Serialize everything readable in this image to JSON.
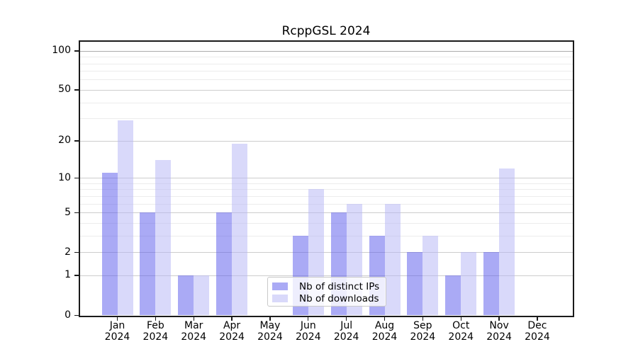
{
  "title": "RcppGSL 2024",
  "legend": {
    "items": [
      {
        "label": "Nb of distinct IPs",
        "color": "rgba(85,85,235,0.5)",
        "color_hex_on_white": "#aaaaf5"
      },
      {
        "label": "Nb of downloads",
        "color": "rgba(179,179,245,0.5)",
        "color_hex_on_white": "#d9d9fa"
      }
    ]
  },
  "chart_data": {
    "type": "bar",
    "title": "RcppGSL 2024",
    "categories": [
      "Jan 2024",
      "Feb 2024",
      "Mar 2024",
      "Apr 2024",
      "May 2024",
      "Jun 2024",
      "Jul 2024",
      "Aug 2024",
      "Sep 2024",
      "Oct 2024",
      "Nov 2024",
      "Dec 2024"
    ],
    "series": [
      {
        "name": "Nb of distinct IPs",
        "color": "rgba(85,85,235,0.5)",
        "values": [
          11,
          5,
          1,
          5,
          0,
          3,
          5,
          3,
          2,
          1,
          2,
          0
        ]
      },
      {
        "name": "Nb of downloads",
        "color": "rgba(179,179,245,0.5)",
        "values": [
          29,
          14,
          1,
          19,
          0,
          8,
          6,
          6,
          3,
          2,
          12,
          0
        ]
      }
    ],
    "xlabel": "",
    "ylabel": "",
    "y_scale": "log1p",
    "ylim": [
      0,
      117
    ],
    "y_major_ticks": [
      0,
      1,
      2,
      5,
      10,
      20,
      50,
      100
    ],
    "y_minor_ticks": [
      3,
      4,
      6,
      7,
      8,
      9,
      30,
      40,
      60,
      70,
      80,
      90
    ],
    "grid": true,
    "legend_position": "lower-center"
  }
}
